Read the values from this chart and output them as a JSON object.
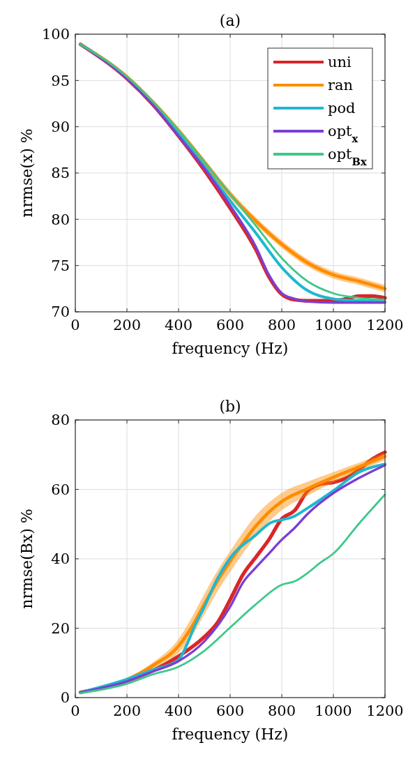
{
  "chart_data": [
    {
      "type": "line",
      "title": "(a)",
      "xlabel": "frequency (Hz)",
      "ylabel": "nrmse(x) %",
      "xlim": [
        0,
        1200
      ],
      "xticks": [
        0,
        200,
        400,
        600,
        800,
        1000,
        1200
      ],
      "ylim": [
        70,
        100
      ],
      "yticks": [
        70,
        75,
        80,
        85,
        90,
        95,
        100
      ],
      "grid": true,
      "legend": "top right",
      "series": [
        {
          "name": "uni",
          "color": "#d9262a",
          "x": [
            20,
            200,
            300,
            400,
            500,
            600,
            700,
            750,
            800,
            850,
            900,
            1000,
            1050,
            1100,
            1150,
            1200
          ],
          "values": [
            98.9,
            95.2,
            92.4,
            89,
            85.3,
            81.2,
            76.7,
            73.8,
            71.9,
            71.3,
            71.2,
            71.2,
            71.4,
            71.7,
            71.7,
            71.5
          ]
        },
        {
          "name": "ran",
          "color": "#ff8c00",
          "x": [
            20,
            200,
            300,
            400,
            500,
            600,
            700,
            800,
            900,
            1000,
            1100,
            1200
          ],
          "values": [
            98.9,
            95.4,
            92.7,
            89.6,
            86.2,
            82.7,
            79.8,
            77.3,
            75.3,
            74,
            73.3,
            72.5
          ],
          "lower": [
            98.8,
            95.3,
            92.5,
            89.3,
            85.9,
            82.3,
            79.4,
            76.9,
            74.9,
            73.6,
            72.9,
            72.1
          ],
          "upper": [
            99,
            95.5,
            92.9,
            89.9,
            86.5,
            83.1,
            80.2,
            77.7,
            75.7,
            74.4,
            73.7,
            72.9
          ]
        },
        {
          "name": "pod",
          "color": "#1fb8d0",
          "x": [
            20,
            200,
            300,
            400,
            500,
            600,
            700,
            800,
            900,
            1000,
            1100,
            1200
          ],
          "values": [
            98.9,
            95.3,
            92.5,
            89.2,
            85.7,
            82,
            78.5,
            74.8,
            72.3,
            71.4,
            71.2,
            71.1
          ]
        },
        {
          "name": "opt$_{x}$",
          "color": "#7b3fd2",
          "x": [
            20,
            200,
            300,
            400,
            500,
            600,
            700,
            750,
            800,
            850,
            900,
            1000,
            1100,
            1200
          ],
          "values": [
            98.9,
            95.2,
            92.4,
            89,
            85.5,
            81.5,
            77,
            74,
            72,
            71.4,
            71.1,
            71,
            71,
            71
          ]
        },
        {
          "name": "opt$_{Bx}$",
          "color": "#3ec88a",
          "x": [
            20,
            200,
            300,
            400,
            500,
            600,
            700,
            800,
            900,
            1000,
            1100,
            1200
          ],
          "values": [
            98.9,
            95.4,
            92.7,
            89.6,
            86.2,
            82.7,
            79.3,
            75.8,
            73.3,
            72,
            71.5,
            71.3
          ]
        }
      ]
    },
    {
      "type": "line",
      "title": "(b)",
      "xlabel": "frequency (Hz)",
      "ylabel": "nrmse(Bx) %",
      "xlim": [
        0,
        1200
      ],
      "xticks": [
        0,
        200,
        400,
        600,
        800,
        1000,
        1200
      ],
      "ylim": [
        0,
        80
      ],
      "yticks": [
        0,
        20,
        40,
        60,
        80
      ],
      "grid": true,
      "series": [
        {
          "color": "#d9262a",
          "x": [
            20,
            200,
            300,
            400,
            500,
            550,
            600,
            650,
            700,
            750,
            800,
            850,
            900,
            950,
            1000,
            1050,
            1100,
            1150,
            1200
          ],
          "values": [
            1.5,
            4.8,
            7.8,
            11.9,
            17.5,
            21.5,
            28.2,
            35.5,
            40.5,
            45.5,
            51.5,
            53.9,
            59.5,
            61.5,
            62,
            63.3,
            65.7,
            68.7,
            70.7
          ]
        },
        {
          "color": "#ff8c00",
          "x": [
            20,
            200,
            300,
            400,
            450,
            500,
            550,
            600,
            700,
            800,
            900,
            1000,
            1100,
            1200
          ],
          "values": [
            1.5,
            5.2,
            9.2,
            14.9,
            20.2,
            26.9,
            33.5,
            39.2,
            49.5,
            56.5,
            60.2,
            63.5,
            66.5,
            69.5
          ],
          "lower": [
            1.3,
            4.8,
            8.3,
            12.9,
            17.5,
            23.9,
            30.5,
            36.2,
            46.5,
            54,
            58.2,
            62,
            65.3,
            68.5
          ],
          "upper": [
            1.7,
            5.6,
            10.1,
            16.9,
            22.9,
            29.9,
            36.5,
            42.2,
            52.5,
            59,
            62.2,
            65,
            67.7,
            70.5
          ]
        },
        {
          "color": "#1fb8d0",
          "x": [
            20,
            200,
            300,
            400,
            430,
            460,
            500,
            550,
            600,
            700,
            760,
            800,
            850,
            900,
            1000,
            1100,
            1200
          ],
          "values": [
            1.5,
            5.3,
            8,
            10.9,
            14.9,
            20.2,
            26.2,
            34.2,
            40.2,
            46.9,
            50.5,
            51.2,
            52.3,
            54.6,
            59.6,
            65,
            67.3
          ]
        },
        {
          "color": "#7b3fd2",
          "x": [
            20,
            200,
            300,
            400,
            500,
            600,
            650,
            700,
            750,
            800,
            850,
            900,
            1000,
            1100,
            1200
          ],
          "values": [
            1.5,
            4.7,
            7.5,
            10.5,
            16.2,
            26.2,
            33.2,
            37.5,
            41.5,
            45.5,
            48.9,
            52.9,
            58.9,
            63.3,
            67
          ]
        },
        {
          "color": "#3ec88a",
          "x": [
            20,
            200,
            300,
            400,
            500,
            600,
            700,
            800,
            850,
            900,
            950,
            1000,
            1100,
            1200
          ],
          "values": [
            1.3,
            4,
            6.7,
            8.9,
            13.5,
            20.2,
            26.9,
            32.5,
            33.5,
            35.9,
            38.9,
            41.5,
            50.2,
            58.5
          ]
        }
      ]
    }
  ]
}
